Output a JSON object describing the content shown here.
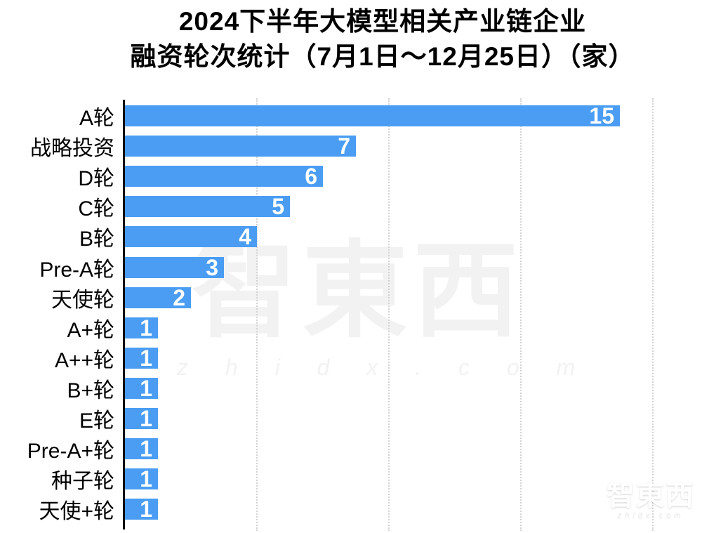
{
  "title": {
    "line1": "2024下半年大模型相关产业链企业",
    "line2": "融资轮次统计（7月1日～12月25日）（家）"
  },
  "chart_data": {
    "type": "bar",
    "orientation": "horizontal",
    "title": "2024下半年大模型相关产业链企业融资轮次统计（7月1日～12月25日）（家）",
    "unit": "家",
    "categories": [
      "A轮",
      "战略投资",
      "D轮",
      "C轮",
      "B轮",
      "Pre-A轮",
      "天使轮",
      "A+轮",
      "A++轮",
      "B+轮",
      "E轮",
      "Pre-A+轮",
      "种子轮",
      "天使+轮"
    ],
    "values": [
      15,
      7,
      6,
      5,
      4,
      3,
      2,
      1,
      1,
      1,
      1,
      1,
      1,
      1
    ],
    "xlim": [
      0,
      16
    ],
    "gridline_values": [
      4,
      8,
      12,
      16
    ],
    "grid": "vertical-dotted",
    "legend": "none",
    "bar_color": "#4A9DF3",
    "value_label_color": "#FFFFFF",
    "axis_color": "#0D0D0D",
    "gridline_color": "#D3D3D3"
  },
  "watermark": {
    "center_logo": "智東西",
    "center_url": "z h i d x . c o m",
    "corner_logo": "智東西",
    "corner_url": "zhidx.com"
  }
}
